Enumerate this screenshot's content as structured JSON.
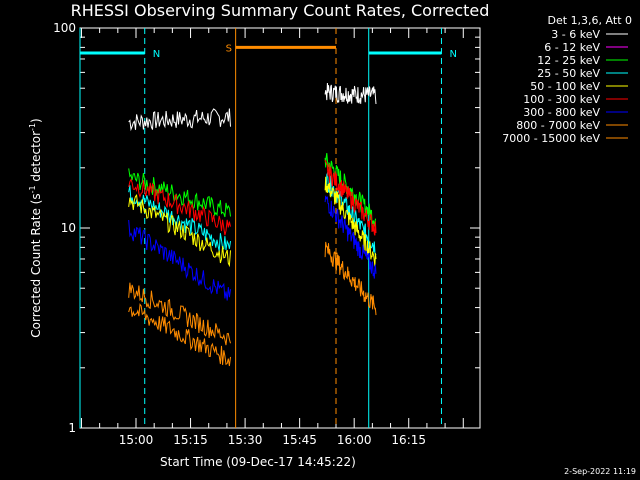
{
  "chart_data": {
    "type": "line",
    "title": "RHESSI Observing Summary Count Rates, Corrected",
    "xlabel": "Start Time (09-Dec-17 14:45:22)",
    "ylabel": "Corrected Count Rate (s⁻¹ detector⁻¹)",
    "ylabel_parts": {
      "main": "Corrected Count Rate (s",
      "sup1": "-1",
      "mid": " detector",
      "sup2": "-1",
      "end": ")"
    },
    "y_scale": "log",
    "ylim": [
      1,
      100
    ],
    "y_ticks": [
      "1",
      "10",
      "100"
    ],
    "xlim_minutes": [
      -15.4,
      94.6
    ],
    "x_ticks": [
      {
        "label": "15:00",
        "min": 0
      },
      {
        "label": "15:15",
        "min": 15
      },
      {
        "label": "15:30",
        "min": 30
      },
      {
        "label": "15:45",
        "min": 45
      },
      {
        "label": "16:00",
        "min": 60
      },
      {
        "label": "16:15",
        "min": 75
      }
    ],
    "legend_title": "Det 1,3,6, Att 0",
    "legend_position": "top-right",
    "series": [
      {
        "name": "3 - 6 keV",
        "color": "#ffffff",
        "seg1": [
          34,
          36
        ],
        "seg2": [
          48,
          46
        ]
      },
      {
        "name": "6 - 12 keV",
        "color": "#ff00ff",
        "seg1": null,
        "seg2": null
      },
      {
        "name": "12 - 25 keV",
        "color": "#00ff00",
        "seg1": [
          18,
          12
        ],
        "seg2": [
          22,
          11
        ]
      },
      {
        "name": "25 - 50 keV",
        "color": "#00ffff",
        "seg1": [
          15,
          8
        ],
        "seg2": [
          18,
          8
        ]
      },
      {
        "name": "50 - 100 keV",
        "color": "#ffff00",
        "seg1": [
          14,
          7
        ],
        "seg2": [
          17,
          7
        ]
      },
      {
        "name": "100 - 300 keV",
        "color": "#ff0000",
        "seg1": [
          17,
          10
        ],
        "seg2": [
          20,
          10
        ]
      },
      {
        "name": "300 - 800 keV",
        "color": "#0000ff",
        "seg1": [
          10,
          4.5
        ],
        "seg2": [
          14,
          6
        ]
      },
      {
        "name": "800 - 7000 keV",
        "color": "#ff8c00",
        "seg1": [
          5,
          2.8
        ],
        "seg2": [
          8,
          4
        ]
      },
      {
        "name": "7000 - 15000 keV",
        "color": "#ff8c00",
        "seg1": [
          4,
          2.2
        ],
        "seg2": null
      }
    ],
    "segments_min": {
      "seg1": [
        -2,
        26
      ],
      "seg2": [
        52,
        66
      ]
    },
    "flags": [
      {
        "label": "N",
        "color": "#00ffff",
        "level": 75,
        "from": -15.4,
        "to": 2.4,
        "dashed_at": [
          2.4
        ]
      },
      {
        "label": "N",
        "color": "#00ffff",
        "level": 75,
        "from": 64.0,
        "to": 84.0,
        "dashed_at": [
          84.0
        ]
      },
      {
        "label": "S",
        "color": "#ff8c00",
        "level": 80,
        "from": 27.4,
        "to": 55.0,
        "dashed_at": [
          55.0
        ]
      }
    ],
    "timestamp": "2-Sep-2022 11:19"
  }
}
